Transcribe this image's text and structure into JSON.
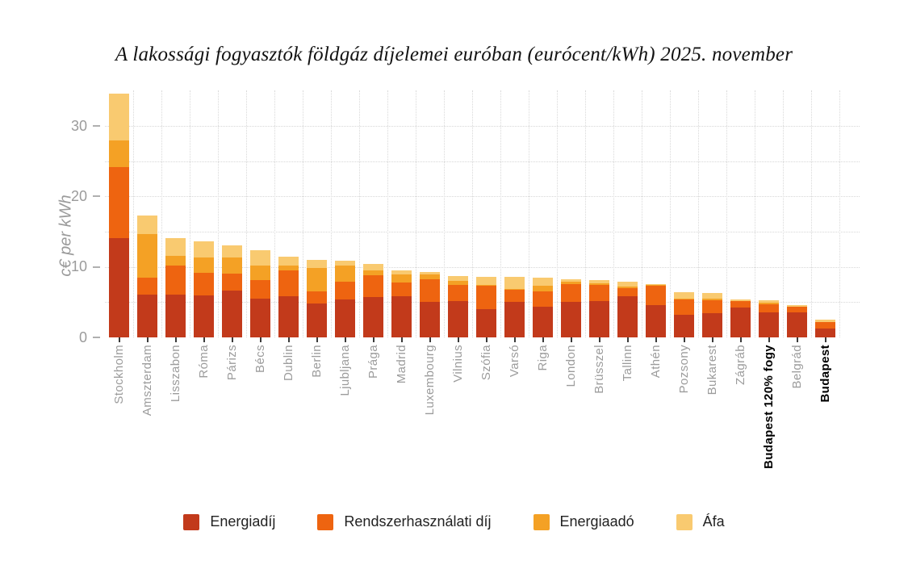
{
  "title": "A lakossági fogyasztók földgáz díjelemei euróban (eurócent/kWh) 2025. november",
  "y_axis": {
    "label": "c€ per kWh",
    "ticks": [
      0,
      10,
      20,
      30
    ]
  },
  "legend": [
    {
      "label": "Energiadíj",
      "color": "#c23a1b"
    },
    {
      "label": "Rendszerhasználati díj",
      "color": "#ee6410"
    },
    {
      "label": "Energiaadó",
      "color": "#f4a125"
    },
    {
      "label": "Áfa",
      "color": "#f9ca70"
    }
  ],
  "chart_data": {
    "type": "bar",
    "stacked": true,
    "title": "A lakossági fogyasztók földgáz díjelemei euróban (eurócent/kWh) 2025. november",
    "xlabel": "",
    "ylabel": "c€ per kWh",
    "ylim": [
      0,
      35.5
    ],
    "grid": "dotted",
    "legend_position": "bottom",
    "categories": [
      "Stockholm",
      "Amszterdam",
      "Lisszabon",
      "Róma",
      "Párizs",
      "Bécs",
      "Dublin",
      "Berlin",
      "Ljubljana",
      "Prága",
      "Madrid",
      "Luxembourg",
      "Vilnius",
      "Szófia",
      "Varsó",
      "Riga",
      "London",
      "Brüsszel",
      "Tallinn",
      "Athén",
      "Pozsony",
      "Bukarest",
      "Zágráb",
      "Budapest 120% fogy",
      "Belgrád",
      "Budapest"
    ],
    "bold_categories": [
      "Budapest 120% fogy",
      "Budapest"
    ],
    "series": [
      {
        "name": "Energiadíj",
        "color": "#c23a1b",
        "values": [
          14.1,
          6.1,
          6.1,
          6.0,
          6.6,
          5.5,
          5.9,
          4.8,
          5.4,
          5.7,
          5.9,
          5.1,
          5.2,
          4.0,
          5.0,
          4.4,
          5.1,
          5.2,
          5.9,
          4.6,
          3.2,
          3.4,
          4.2,
          3.6,
          3.6,
          1.3
        ]
      },
      {
        "name": "Rendszerhasználati díj",
        "color": "#ee6410",
        "values": [
          10.1,
          2.4,
          4.1,
          3.2,
          2.5,
          2.6,
          3.6,
          1.7,
          2.5,
          3.1,
          1.9,
          3.1,
          2.2,
          3.3,
          1.8,
          2.1,
          2.5,
          2.3,
          1.1,
          2.7,
          2.2,
          1.9,
          0.9,
          1.1,
          0.75,
          0.85
        ]
      },
      {
        "name": "Energiaadó",
        "color": "#f4a125",
        "values": [
          3.7,
          6.2,
          1.4,
          2.1,
          2.2,
          2.1,
          0.7,
          3.4,
          2.3,
          0.7,
          1.1,
          0.7,
          0.6,
          0.1,
          0.1,
          0.85,
          0.3,
          0.2,
          0.25,
          0.1,
          0.1,
          0.2,
          0.0,
          0.2,
          0.0,
          0.0
        ]
      },
      {
        "name": "Áfa",
        "color": "#f9ca70",
        "values": [
          6.7,
          2.6,
          2.5,
          2.3,
          1.8,
          2.2,
          1.3,
          1.1,
          0.7,
          0.9,
          0.6,
          0.4,
          0.7,
          1.25,
          1.7,
          1.15,
          0.4,
          0.4,
          0.65,
          0.2,
          0.95,
          0.8,
          0.3,
          0.4,
          0.25,
          0.4
        ]
      }
    ],
    "totals": [
      34.6,
      17.3,
      14.1,
      13.6,
      13.1,
      12.4,
      11.5,
      11.0,
      10.9,
      10.4,
      9.5,
      9.3,
      8.7,
      8.65,
      8.6,
      8.5,
      8.3,
      8.1,
      7.9,
      7.6,
      6.45,
      6.3,
      5.4,
      5.3,
      4.6,
      2.55
    ]
  }
}
